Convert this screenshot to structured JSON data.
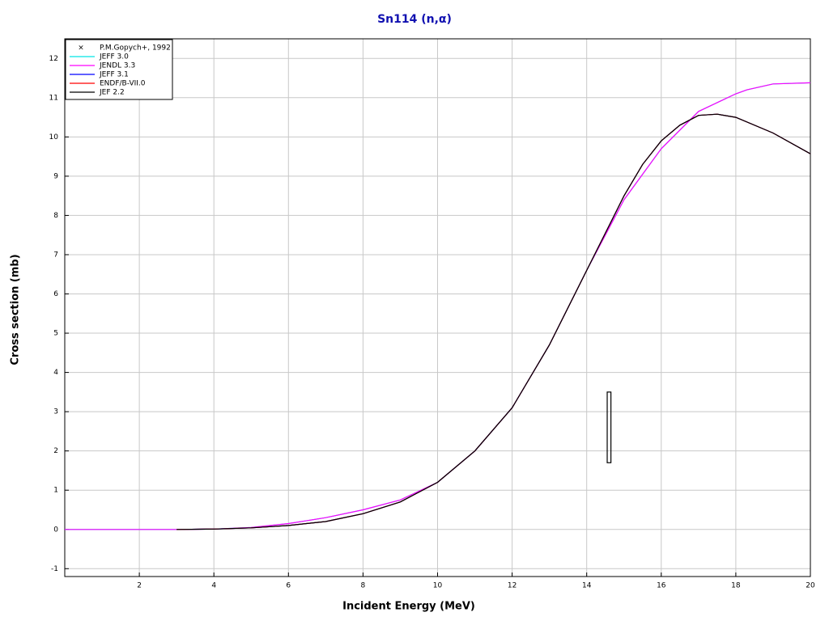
{
  "chart_data": {
    "type": "line",
    "title": "Sn114 (n,α)",
    "x_label": "Incident Energy (MeV)",
    "y_label": "Cross section (mb)",
    "xlim": [
      0,
      20
    ],
    "ylim": [
      -1.2,
      12.5
    ],
    "xticks": [
      2,
      4,
      6,
      8,
      10,
      12,
      14,
      16,
      18,
      20
    ],
    "yticks": [
      -1,
      0,
      1,
      2,
      3,
      4,
      5,
      6,
      7,
      8,
      9,
      10,
      11,
      12
    ],
    "grid": true,
    "legend": "top-left",
    "experimental": {
      "name": "P.M.Gopych+, 1992",
      "color": "#000000",
      "x": [
        14.6
      ],
      "xerr": [
        0.05
      ],
      "values": [
        2.6
      ],
      "yerr": [
        0.9
      ]
    },
    "series": [
      {
        "name": "JEFF 3.0",
        "color": "#00e5e5",
        "x": [
          0,
          3,
          4,
          5,
          6,
          7,
          8,
          9,
          10,
          11,
          12,
          13,
          14,
          15,
          16,
          17,
          18,
          18.3,
          19,
          20
        ],
        "values": [
          0,
          0,
          0.01,
          0.05,
          0.15,
          0.3,
          0.5,
          0.75,
          1.2,
          2.0,
          3.1,
          4.7,
          6.6,
          8.4,
          9.7,
          10.65,
          11.1,
          11.2,
          11.35,
          11.38
        ]
      },
      {
        "name": "JENDL 3.3",
        "color": "#ff00ff",
        "x": [
          0,
          3,
          4,
          5,
          6,
          7,
          8,
          9,
          10,
          11,
          12,
          13,
          14,
          15,
          16,
          17,
          18,
          18.3,
          19,
          20
        ],
        "values": [
          0,
          0,
          0.01,
          0.05,
          0.15,
          0.3,
          0.5,
          0.75,
          1.2,
          2.0,
          3.1,
          4.7,
          6.6,
          8.4,
          9.7,
          10.65,
          11.1,
          11.2,
          11.35,
          11.38
        ]
      },
      {
        "name": "JEFF 3.1",
        "color": "#0000ff",
        "x": [
          3,
          4,
          5,
          6,
          7,
          8,
          9,
          10,
          11,
          12,
          13,
          14,
          15,
          15.5,
          16,
          16.5,
          17,
          17.5,
          18,
          19,
          20
        ],
        "values": [
          0,
          0.01,
          0.04,
          0.1,
          0.2,
          0.4,
          0.7,
          1.2,
          2.0,
          3.1,
          4.7,
          6.6,
          8.5,
          9.3,
          9.9,
          10.3,
          10.55,
          10.58,
          10.5,
          10.1,
          9.57
        ]
      },
      {
        "name": "ENDF/B-VII.0",
        "color": "#ff0000",
        "x": [
          3,
          4,
          5,
          6,
          7,
          8,
          9,
          10,
          11,
          12,
          13,
          14,
          15,
          15.5,
          16,
          16.5,
          17,
          17.5,
          18,
          19,
          20
        ],
        "values": [
          0,
          0.01,
          0.04,
          0.1,
          0.2,
          0.4,
          0.7,
          1.2,
          2.0,
          3.1,
          4.7,
          6.6,
          8.5,
          9.3,
          9.9,
          10.3,
          10.55,
          10.58,
          10.5,
          10.1,
          9.57
        ]
      },
      {
        "name": "JEF 2.2",
        "color": "#000000",
        "x": [
          3,
          4,
          5,
          6,
          7,
          8,
          9,
          10,
          11,
          12,
          13,
          14,
          15,
          15.5,
          16,
          16.5,
          17,
          17.5,
          18,
          19,
          20
        ],
        "values": [
          0,
          0.01,
          0.04,
          0.1,
          0.2,
          0.4,
          0.7,
          1.2,
          2.0,
          3.1,
          4.7,
          6.6,
          8.5,
          9.3,
          9.9,
          10.3,
          10.55,
          10.58,
          10.5,
          10.1,
          9.57
        ]
      }
    ]
  }
}
